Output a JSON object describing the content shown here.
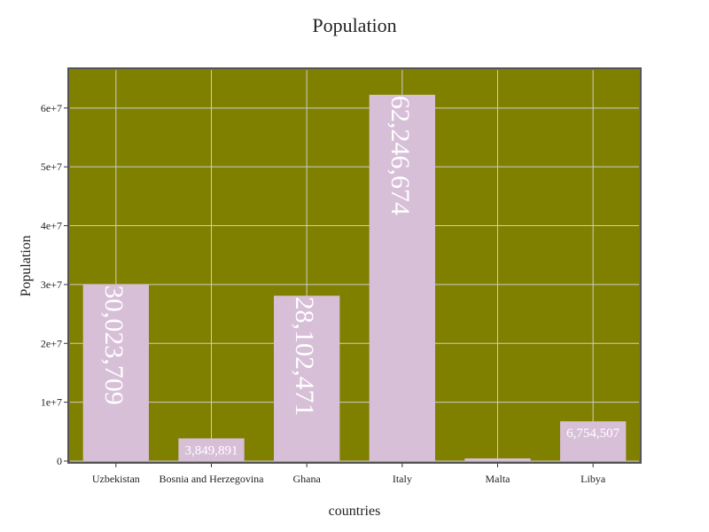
{
  "chart_data": {
    "type": "bar",
    "title": "Population",
    "xlabel": "countries",
    "ylabel": "Population",
    "categories": [
      "Uzbekistan",
      "Bosnia and Herzegovina",
      "Ghana",
      "Italy",
      "Malta",
      "Libya"
    ],
    "values": [
      30023709,
      3849891,
      28102471,
      62246674,
      0,
      6754507
    ],
    "data_labels": [
      "30,023,709",
      "3,849,891",
      "28,102,471",
      "62,246,674",
      "",
      "6,754,507"
    ],
    "ylim": [
      0,
      66000000
    ],
    "yticks": [
      0,
      10000000,
      20000000,
      30000000,
      40000000,
      50000000,
      60000000
    ],
    "ytick_labels": [
      "0",
      "1e+7",
      "2e+7",
      "3e+7",
      "4e+7",
      "5e+7",
      "6e+7"
    ],
    "grid": true
  },
  "colors": {
    "plot_background": "#808000",
    "bar": "#d8bfd8",
    "label": "#ffffff",
    "grid": "#cccccc",
    "frame": "#555555"
  }
}
